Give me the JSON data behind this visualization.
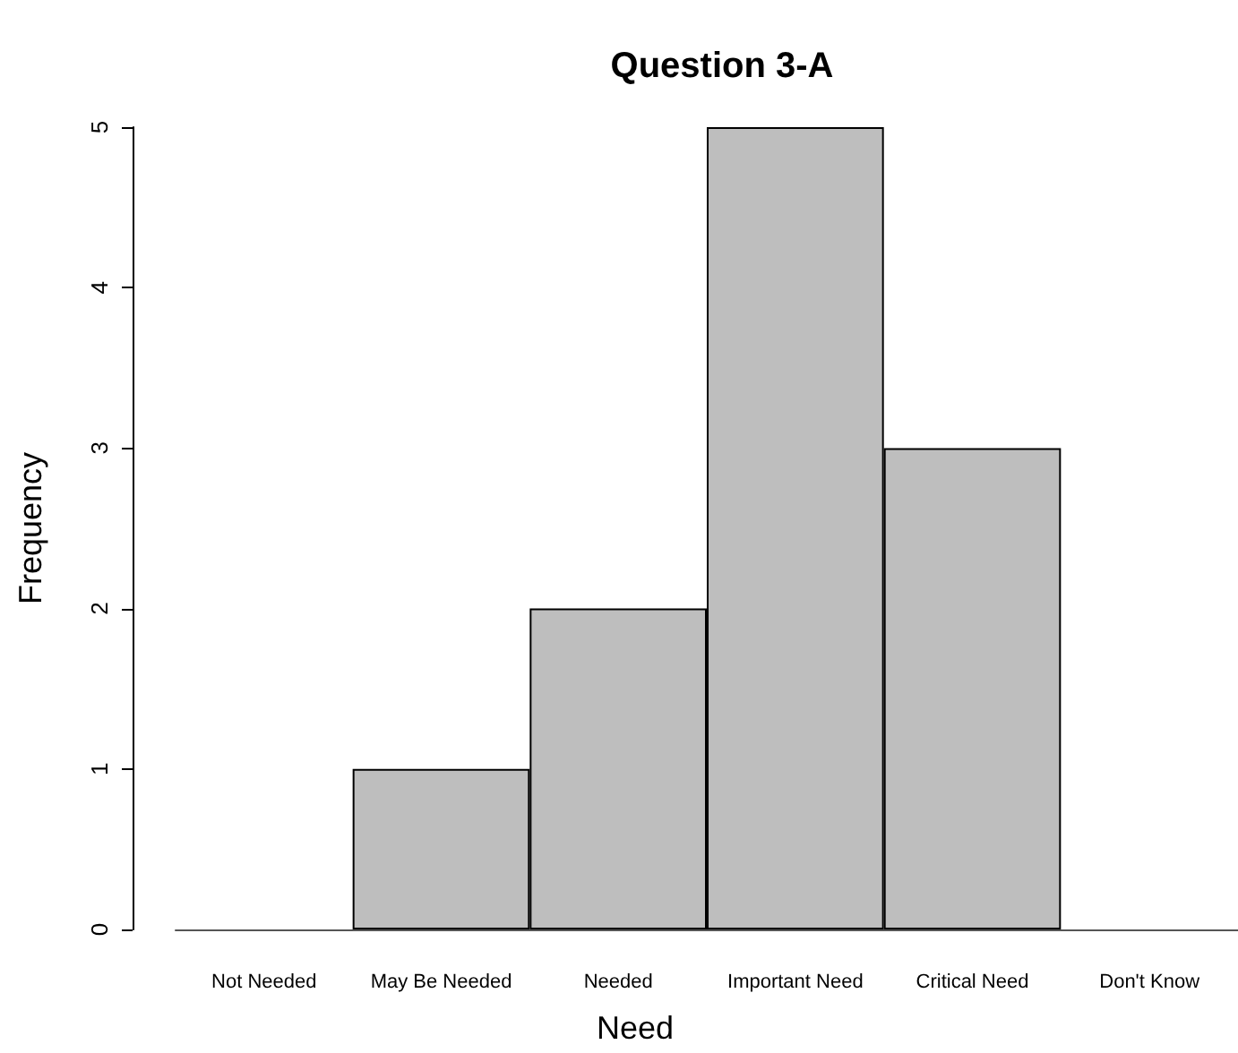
{
  "chart_data": {
    "type": "bar",
    "title": "Question 3-A",
    "xlabel": "Need",
    "ylabel": "Frequency",
    "categories": [
      "Not Needed",
      "May Be Needed",
      "Needed",
      "Important Need",
      "Critical Need",
      "Don't Know"
    ],
    "values": [
      0,
      1,
      2,
      5,
      3,
      0
    ],
    "color": "#bebebe",
    "ylim": [
      0,
      5
    ],
    "yticks": [
      0,
      1,
      2,
      3,
      4,
      5
    ],
    "grid": false
  }
}
